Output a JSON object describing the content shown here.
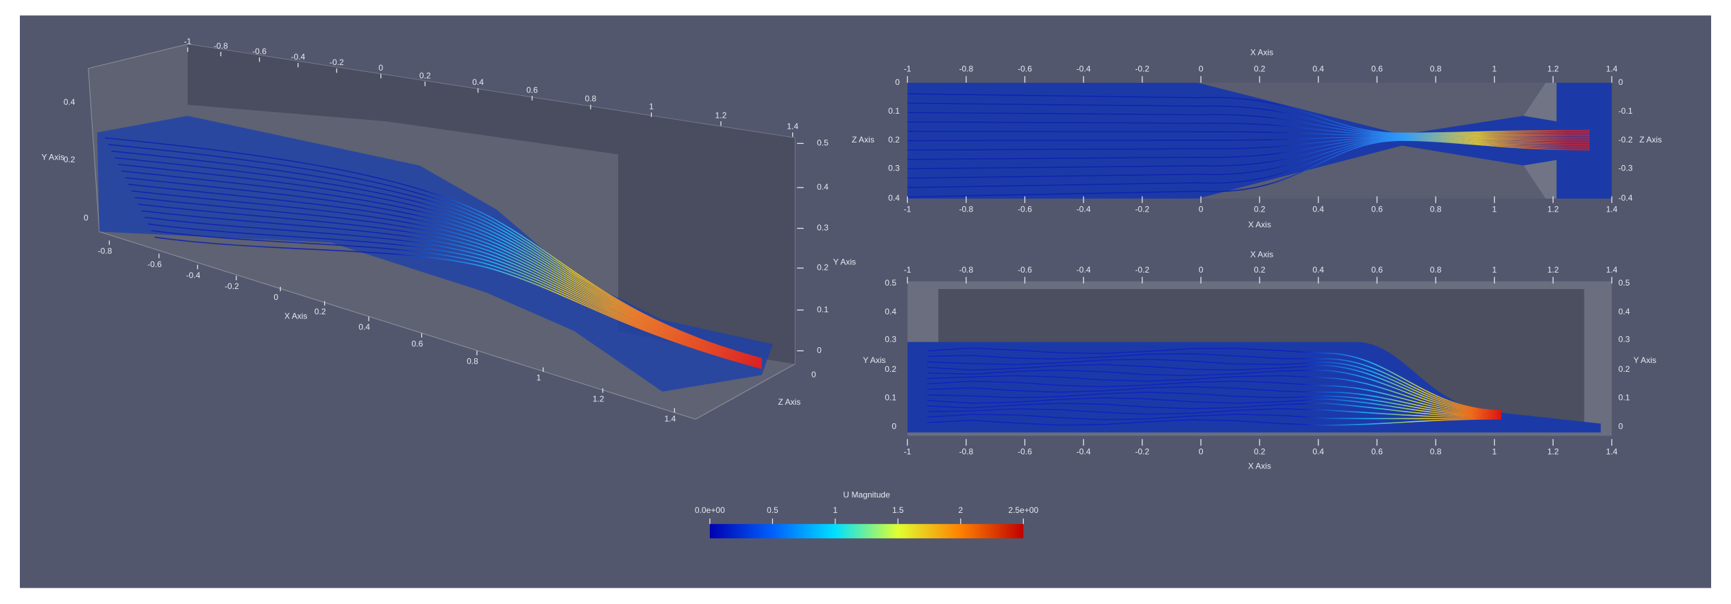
{
  "views": {
    "perspective": {
      "x_axis_title": "X Axis",
      "y_axis_title_left": "Y Axis",
      "y_axis_title_right": "Y Axis",
      "z_axis_title": "Z Axis",
      "x_ticks_front": [
        "-0.8",
        "-0.6",
        "-0.4",
        "-0.2",
        "0",
        "0.2",
        "0.4",
        "0.6",
        "0.8",
        "1",
        "1.2",
        "1.4"
      ],
      "x_ticks_back": [
        "-1",
        "-0.8",
        "-0.6",
        "-0.4",
        "-0.2",
        "0",
        "0.2",
        "0.4",
        "0.6",
        "0.8",
        "1",
        "1.2",
        "1.4"
      ],
      "y_ticks_left": [
        "0.4",
        "0.2",
        "0"
      ],
      "y_ticks_right": [
        "0.5",
        "0.4",
        "0.3",
        "0.2",
        "0.1",
        "0"
      ],
      "z_tick": "0"
    },
    "top": {
      "x_axis_title_top": "X Axis",
      "x_axis_title_bottom": "X Axis",
      "z_axis_title_left": "Z Axis",
      "z_axis_title_right": "Z Axis",
      "x_ticks": [
        "-1",
        "-0.8",
        "-0.6",
        "-0.4",
        "-0.2",
        "0",
        "0.2",
        "0.4",
        "0.6",
        "0.8",
        "1",
        "1.2",
        "1.4"
      ],
      "z_ticks_left": [
        "0",
        "0.1",
        "0.2",
        "0.3",
        "0.4"
      ],
      "z_ticks_right": [
        "0",
        "-0.1",
        "-0.2",
        "-0.3",
        "-0.4"
      ]
    },
    "side": {
      "x_axis_title_top": "X Axis",
      "x_axis_title_bottom": "X Axis",
      "y_axis_title_left": "Y Axis",
      "y_axis_title_right": "Y Axis",
      "x_ticks": [
        "-1",
        "-0.8",
        "-0.6",
        "-0.4",
        "-0.2",
        "0",
        "0.2",
        "0.4",
        "0.6",
        "0.8",
        "1",
        "1.2",
        "1.4"
      ],
      "y_ticks": [
        "0.5",
        "0.4",
        "0.3",
        "0.2",
        "0.1",
        "0"
      ]
    }
  },
  "colorbar": {
    "title": "U Magnitude",
    "ticks": [
      "0.0e+00",
      "0.5",
      "1",
      "1.5",
      "2",
      "2.5e+00"
    ]
  }
}
